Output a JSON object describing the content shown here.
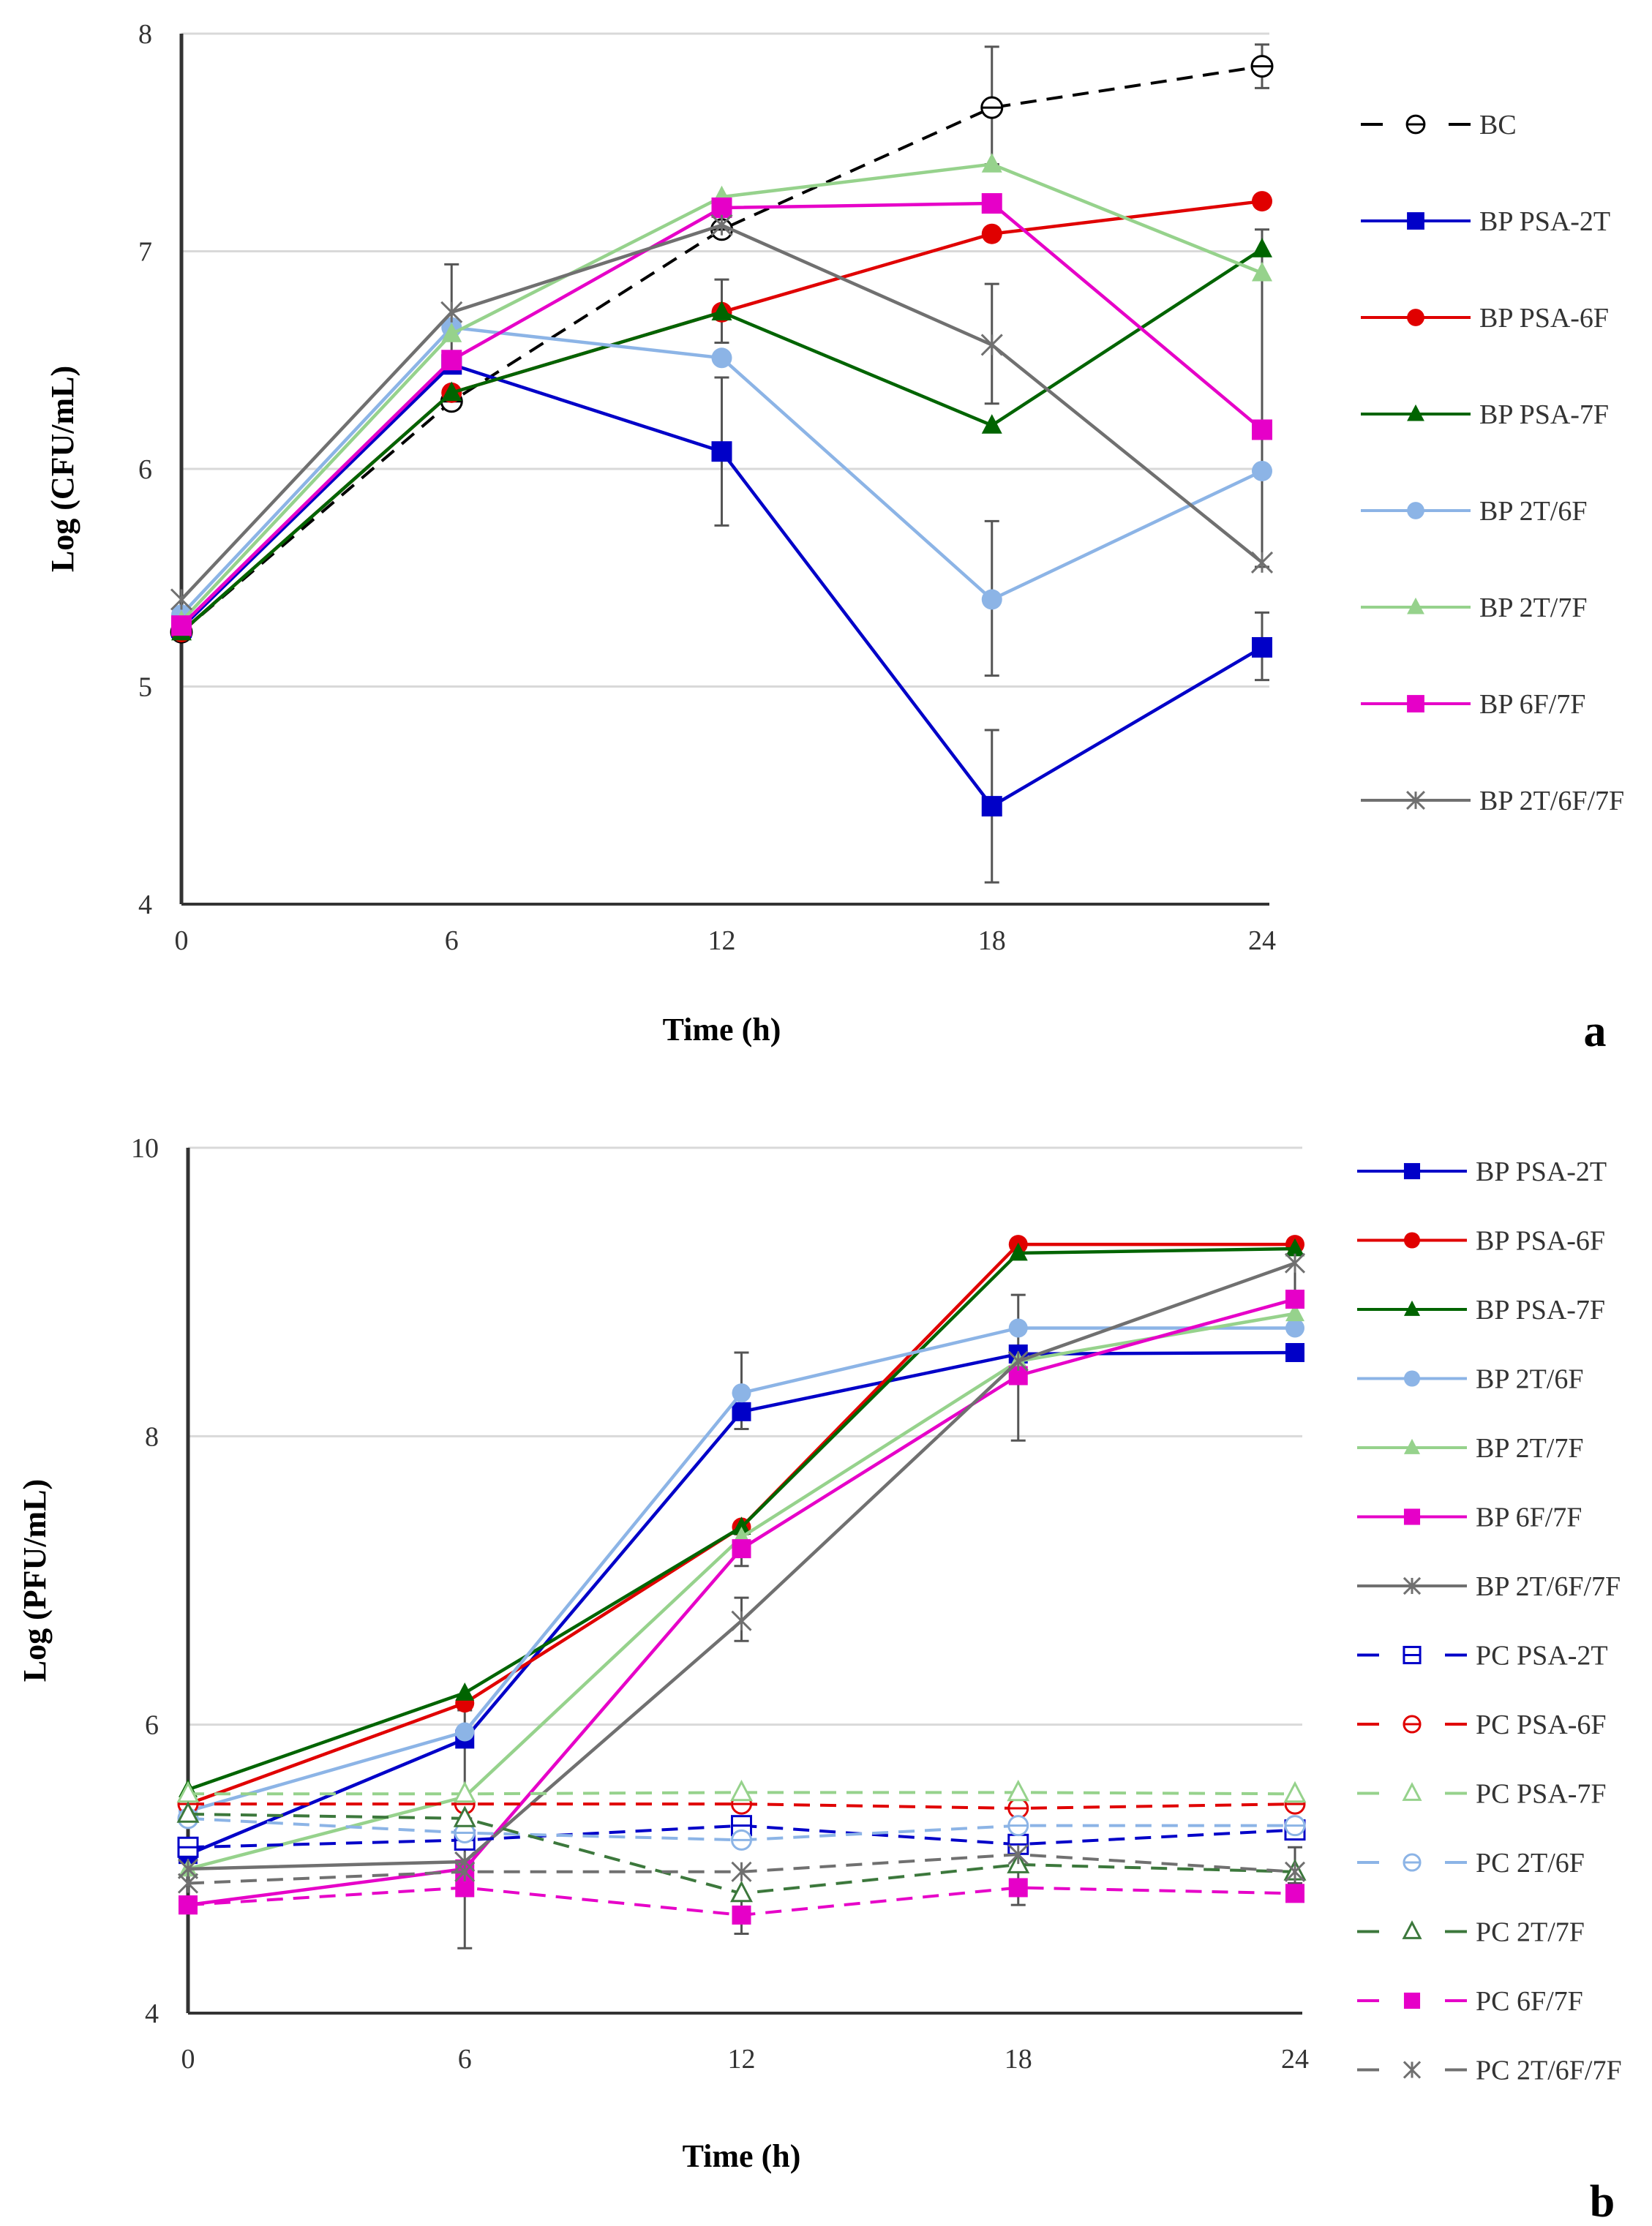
{
  "chart_data": [
    {
      "type": "line",
      "panel_label": "a",
      "title": "",
      "xlabel": "Time (h)",
      "ylabel": "Log (CFU/mL)",
      "x": [
        0,
        6,
        12,
        18,
        24
      ],
      "xticks": [
        "0",
        "6",
        "12",
        "18",
        "24"
      ],
      "yticks": [
        "4",
        "5",
        "6",
        "7",
        "8"
      ],
      "ylim": [
        4,
        8
      ],
      "grid": true,
      "legend": "right",
      "series": [
        {
          "name": "BC",
          "color": "#000000",
          "dashed": true,
          "marker": "circle-open-bar",
          "values": [
            5.25,
            6.31,
            7.1,
            7.66,
            7.85
          ]
        },
        {
          "name": "BP PSA-2T",
          "color": "#0000C8",
          "dashed": false,
          "marker": "square",
          "values": [
            5.27,
            6.48,
            6.08,
            4.45,
            5.18
          ]
        },
        {
          "name": "BP PSA-6F",
          "color": "#E00000",
          "dashed": false,
          "marker": "circle",
          "values": [
            5.25,
            6.35,
            6.72,
            7.08,
            7.23
          ]
        },
        {
          "name": "BP PSA-7F",
          "color": "#006400",
          "dashed": false,
          "marker": "triangle",
          "values": [
            5.25,
            6.35,
            6.72,
            6.2,
            7.01
          ]
        },
        {
          "name": "BP 2T/6F",
          "color": "#8CB4E6",
          "dashed": false,
          "marker": "circle",
          "values": [
            5.33,
            6.65,
            6.51,
            5.4,
            5.99
          ]
        },
        {
          "name": "BP 2T/7F",
          "color": "#96D28C",
          "dashed": false,
          "marker": "triangle",
          "values": [
            5.3,
            6.62,
            7.25,
            7.4,
            6.9
          ]
        },
        {
          "name": "BP 6F/7F",
          "color": "#E600C8",
          "dashed": false,
          "marker": "square",
          "values": [
            5.28,
            6.5,
            7.2,
            7.22,
            6.18
          ]
        },
        {
          "name": "BP 2T/6F/7F",
          "color": "#707070",
          "dashed": false,
          "marker": "star",
          "values": [
            5.4,
            6.72,
            7.12,
            6.57,
            5.57
          ]
        }
      ],
      "error_bars": [
        {
          "series": "BP PSA-2T",
          "x": 12,
          "low": 5.74,
          "high": 6.42
        },
        {
          "series": "BP PSA-2T",
          "x": 18,
          "low": 4.1,
          "high": 4.8
        },
        {
          "series": "BP PSA-2T",
          "x": 24,
          "low": 5.03,
          "high": 5.34
        },
        {
          "series": "BP 2T/6F",
          "x": 18,
          "low": 5.05,
          "high": 5.76
        },
        {
          "series": "BP 2T/6F/7F",
          "x": 6,
          "low": 6.5,
          "high": 6.94
        },
        {
          "series": "BC",
          "x": 18,
          "low": 7.4,
          "high": 7.94
        },
        {
          "series": "BC",
          "x": 24,
          "low": 7.75,
          "high": 7.95
        },
        {
          "series": "BP 2T/6F/7F",
          "x": 18,
          "low": 6.3,
          "high": 6.85
        },
        {
          "series": "BP PSA-6F",
          "x": 12,
          "low": 6.58,
          "high": 6.87
        },
        {
          "series": "BP 2T/7F",
          "x": 24,
          "low": 5.55,
          "high": 7.1
        }
      ]
    },
    {
      "type": "line",
      "panel_label": "b",
      "title": "",
      "xlabel": "Time (h)",
      "ylabel": "Log (PFU/mL)",
      "x": [
        0,
        6,
        12,
        18,
        24
      ],
      "xticks": [
        "0",
        "6",
        "12",
        "18",
        "24"
      ],
      "yticks": [
        "4",
        "6",
        "8",
        "10"
      ],
      "ylim": [
        4,
        10
      ],
      "grid": true,
      "legend": "right",
      "series": [
        {
          "name": "BP PSA-2T",
          "color": "#0000C8",
          "dashed": false,
          "marker": "square",
          "values": [
            5.1,
            5.9,
            8.17,
            8.57,
            8.58
          ]
        },
        {
          "name": "BP PSA-6F",
          "color": "#E00000",
          "dashed": false,
          "marker": "circle",
          "values": [
            5.45,
            6.15,
            7.37,
            9.33,
            9.33
          ]
        },
        {
          "name": "BP PSA-7F",
          "color": "#006400",
          "dashed": false,
          "marker": "triangle",
          "values": [
            5.55,
            6.22,
            7.37,
            9.27,
            9.3
          ]
        },
        {
          "name": "BP 2T/6F",
          "color": "#8CB4E6",
          "dashed": false,
          "marker": "circle",
          "values": [
            5.4,
            5.95,
            8.3,
            8.75,
            8.75
          ]
        },
        {
          "name": "BP 2T/7F",
          "color": "#96D28C",
          "dashed": false,
          "marker": "triangle",
          "values": [
            5.0,
            5.5,
            7.3,
            8.52,
            8.85
          ]
        },
        {
          "name": "BP 6F/7F",
          "color": "#E600C8",
          "dashed": false,
          "marker": "square",
          "values": [
            4.75,
            5.0,
            7.22,
            8.42,
            8.95
          ]
        },
        {
          "name": "BP 2T/6F/7F",
          "color": "#707070",
          "dashed": false,
          "marker": "star",
          "values": [
            5.0,
            5.05,
            6.72,
            8.52,
            9.2
          ]
        },
        {
          "name": "PC PSA-2T",
          "color": "#0000C8",
          "dashed": true,
          "marker": "square-open-bar",
          "values": [
            5.15,
            5.2,
            5.3,
            5.17,
            5.27
          ]
        },
        {
          "name": "PC PSA-6F",
          "color": "#E00000",
          "dashed": true,
          "marker": "circle-open-bar",
          "values": [
            5.45,
            5.45,
            5.45,
            5.42,
            5.45
          ]
        },
        {
          "name": "PC PSA-7F",
          "color": "#96D28C",
          "dashed": true,
          "marker": "triangle-open",
          "values": [
            5.52,
            5.52,
            5.53,
            5.53,
            5.52
          ]
        },
        {
          "name": "PC 2T/6F",
          "color": "#8CB4E6",
          "dashed": true,
          "marker": "circle-open-bar",
          "values": [
            5.35,
            5.25,
            5.2,
            5.3,
            5.3
          ]
        },
        {
          "name": "PC 2T/7F",
          "color": "#3C783C",
          "dashed": true,
          "marker": "triangle-open",
          "values": [
            5.38,
            5.35,
            4.83,
            5.03,
            4.98
          ]
        },
        {
          "name": "PC 6F/7F",
          "color": "#E600C8",
          "dashed": true,
          "marker": "square",
          "values": [
            4.75,
            4.87,
            4.68,
            4.87,
            4.83
          ]
        },
        {
          "name": "PC 2T/6F/7F",
          "color": "#707070",
          "dashed": true,
          "marker": "star",
          "values": [
            4.9,
            4.98,
            4.98,
            5.1,
            4.98
          ]
        }
      ],
      "error_bars": [
        {
          "series": "BP 2T/6F",
          "x": 12,
          "low": 8.05,
          "high": 8.58
        },
        {
          "series": "BP 2T/6F/7F",
          "x": 12,
          "low": 6.58,
          "high": 6.88
        },
        {
          "series": "BP 6F/7F",
          "x": 12,
          "low": 7.1,
          "high": 7.32
        },
        {
          "series": "BP 2T/6F/7F",
          "x": 18,
          "low": 7.97,
          "high": 8.98
        },
        {
          "series": "BP 2T/6F",
          "x": 6,
          "low": 5.5,
          "high": 6.1
        },
        {
          "series": "PC 2T/6F/7F",
          "x": 6,
          "low": 4.45,
          "high": 5.35
        },
        {
          "series": "PC 6F/7F",
          "x": 12,
          "low": 4.55,
          "high": 4.8
        },
        {
          "series": "PC 6F/7F",
          "x": 18,
          "low": 4.75,
          "high": 5.0
        },
        {
          "series": "BP 2T/6F/7F",
          "x": 24,
          "low": 9.0,
          "high": 9.3
        },
        {
          "series": "PC 2T/6F/7F",
          "x": 24,
          "low": 4.9,
          "high": 5.15
        }
      ]
    }
  ]
}
